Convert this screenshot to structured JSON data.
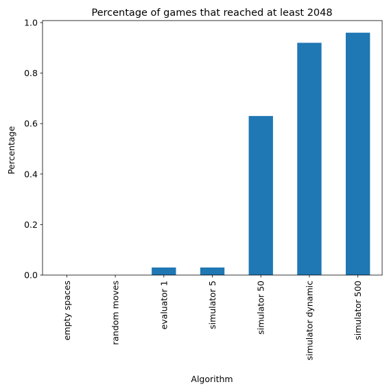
{
  "chart_data": {
    "type": "bar",
    "title": "Percentage of games that reached at least 2048",
    "xlabel": "Algorithm",
    "ylabel": "Percentage",
    "categories": [
      "empty spaces",
      "random moves",
      "evaluator 1",
      "simulator 5",
      "simulator 50",
      "simulator dynamic",
      "simulator 500"
    ],
    "values": [
      0.0,
      0.0,
      0.03,
      0.03,
      0.63,
      0.92,
      0.96
    ],
    "ylim": [
      0,
      1.008
    ],
    "yticks": [
      0.0,
      0.2,
      0.4,
      0.6,
      0.8,
      1.0
    ],
    "ytick_labels": [
      "0.0",
      "0.2",
      "0.4",
      "0.6",
      "0.8",
      "1.0"
    ],
    "grid": false,
    "legend": "none",
    "bar_color": "#1f77b4"
  }
}
